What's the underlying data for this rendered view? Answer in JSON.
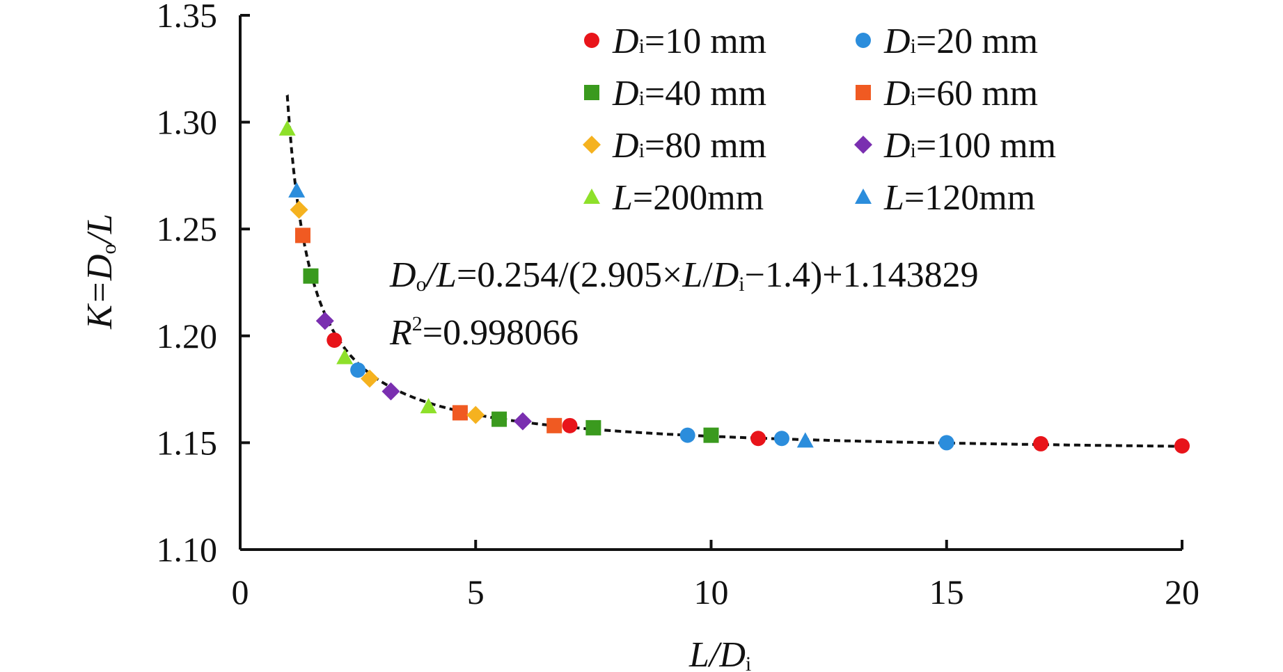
{
  "chart_data": {
    "type": "scatter",
    "title": "",
    "xlabel": {
      "main": "L/D",
      "sub": "i"
    },
    "ylabel": {
      "main": "K=D",
      "sub": "o",
      "end": "/L"
    },
    "xlim": [
      0,
      20
    ],
    "ylim": [
      1.1,
      1.35
    ],
    "xticks": [
      "0",
      "5",
      "10",
      "15",
      "20"
    ],
    "yticks": [
      "1.10",
      "1.15",
      "1.20",
      "1.25",
      "1.30",
      "1.35"
    ],
    "fit": {
      "a": 0.254,
      "b": 2.905,
      "c": 1.4,
      "d": 1.143829,
      "x_range": [
        1.0,
        20.0
      ],
      "color": "#111111",
      "equation": {
        "lhs_main": "D",
        "lhs_sub": "o",
        "lhs_end": "/L",
        "eq_head": "=0.254/(2.905×",
        "eq_var1": "L",
        "eq_slash": "/",
        "eq_var2": "D",
        "eq_sub": "i",
        "eq_tail": "−1.4)+1.143829"
      },
      "r2": {
        "var": "R",
        "sup": "2",
        "value": "=0.998066"
      }
    },
    "series": [
      {
        "name": "Di=10 mm",
        "label": {
          "var": "D",
          "sub": "i",
          "text": "=10 mm"
        },
        "marker": "circle",
        "color": "#e8141a",
        "x": [
          2.0,
          7.0,
          11.0,
          17.0,
          20.0
        ],
        "y": [
          1.198,
          1.158,
          1.152,
          1.1495,
          1.1485
        ]
      },
      {
        "name": "Di=20 mm",
        "label": {
          "var": "D",
          "sub": "i",
          "text": "=20 mm"
        },
        "marker": "circle",
        "color": "#2b8ddc",
        "x": [
          2.5,
          9.5,
          11.5,
          15.0
        ],
        "y": [
          1.184,
          1.1535,
          1.152,
          1.15
        ]
      },
      {
        "name": "Di=40 mm",
        "label": {
          "var": "D",
          "sub": "i",
          "text": "=40 mm"
        },
        "marker": "square",
        "color": "#3a9a1e",
        "x": [
          1.5,
          5.5,
          7.5,
          10.0
        ],
        "y": [
          1.228,
          1.161,
          1.157,
          1.1535
        ]
      },
      {
        "name": "Di=60 mm",
        "label": {
          "var": "D",
          "sub": "i",
          "text": "=60 mm"
        },
        "marker": "square",
        "color": "#f05a22",
        "x": [
          1.33,
          4.67,
          6.67
        ],
        "y": [
          1.247,
          1.164,
          1.158
        ]
      },
      {
        "name": "Di=80 mm",
        "label": {
          "var": "D",
          "sub": "i",
          "text": "=80 mm"
        },
        "marker": "diamond",
        "color": "#f5b21f",
        "x": [
          1.25,
          2.75,
          5.0
        ],
        "y": [
          1.259,
          1.18,
          1.163
        ]
      },
      {
        "name": "Di=100 mm",
        "label": {
          "var": "D",
          "sub": "i",
          "text": "=100 mm"
        },
        "marker": "diamond",
        "color": "#7a2fb0",
        "x": [
          1.8,
          3.2,
          6.0
        ],
        "y": [
          1.207,
          1.174,
          1.16
        ]
      },
      {
        "name": "L=200mm",
        "label": {
          "var": "L",
          "sub": "",
          "text": "=200mm"
        },
        "marker": "triangle",
        "color": "#8ee02a",
        "x": [
          1.0,
          2.22,
          4.0
        ],
        "y": [
          1.297,
          1.19,
          1.167
        ]
      },
      {
        "name": "L=120mm",
        "label": {
          "var": "L",
          "sub": "",
          "text": "=120mm"
        },
        "marker": "triangle",
        "color": "#2b8ddc",
        "x": [
          1.2,
          12.0
        ],
        "y": [
          1.268,
          1.151
        ]
      }
    ],
    "legend": {
      "position": "top-right",
      "columns": 2
    },
    "grid": false
  }
}
